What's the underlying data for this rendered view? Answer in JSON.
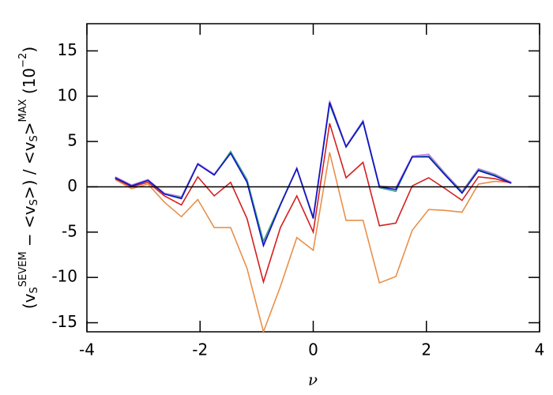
{
  "chart_data": {
    "type": "line",
    "x": [
      -3.5,
      -3.21,
      -2.92,
      -2.63,
      -2.33,
      -2.04,
      -1.75,
      -1.46,
      -1.17,
      -0.88,
      -0.58,
      -0.29,
      0.0,
      0.29,
      0.58,
      0.88,
      1.17,
      1.46,
      1.75,
      2.04,
      2.33,
      2.63,
      2.92,
      3.21,
      3.5
    ],
    "series": [
      {
        "color": "#e8904a",
        "values": [
          0.8,
          -0.2,
          0.3,
          -1.7,
          -3.3,
          -1.4,
          -4.5,
          -4.5,
          -9.0,
          -16.0,
          -11.0,
          -5.6,
          -7.0,
          3.8,
          -3.7,
          -3.7,
          -10.6,
          -9.9,
          -4.8,
          -2.5,
          -2.6,
          -2.8,
          0.3,
          0.6,
          0.5
        ]
      },
      {
        "color": "#d42020",
        "values": [
          0.9,
          0.0,
          0.5,
          -1.0,
          -2.0,
          1.1,
          -1.0,
          0.5,
          -3.5,
          -10.5,
          -4.5,
          -1.0,
          -5.0,
          7.0,
          1.0,
          2.7,
          -4.3,
          -4.0,
          0.1,
          1.0,
          -0.2,
          -1.5,
          1.1,
          0.9,
          0.4
        ]
      },
      {
        "color": "#c080e0",
        "values": [
          1.1,
          0.2,
          0.8,
          -0.7,
          -1.1,
          2.6,
          1.4,
          3.8,
          0.6,
          -6.2,
          -1.9,
          2.1,
          -3.3,
          9.5,
          4.5,
          7.3,
          0.1,
          -0.1,
          3.4,
          3.6,
          1.5,
          -0.5,
          2.0,
          1.4,
          0.5
        ]
      },
      {
        "color": "#3aa080",
        "values": [
          1.0,
          0.1,
          0.7,
          -0.8,
          -1.2,
          2.5,
          1.3,
          3.9,
          0.8,
          -6.0,
          -1.9,
          2.0,
          -3.4,
          9.1,
          4.4,
          7.1,
          -0.1,
          -0.5,
          3.3,
          3.4,
          1.4,
          -0.6,
          1.9,
          1.3,
          0.4
        ]
      },
      {
        "color": "#1010c8",
        "values": [
          1.0,
          0.1,
          0.7,
          -0.8,
          -1.3,
          2.5,
          1.3,
          3.7,
          0.5,
          -6.5,
          -2.0,
          2.0,
          -3.5,
          9.3,
          4.4,
          7.2,
          0.0,
          -0.3,
          3.3,
          3.3,
          1.3,
          -0.7,
          1.8,
          1.2,
          0.4
        ]
      }
    ],
    "hlines": [
      0
    ],
    "xlim": [
      -4,
      4
    ],
    "ylim": [
      -16,
      18
    ],
    "xticks": [
      -4,
      -2,
      0,
      2,
      4
    ],
    "yticks": [
      -15,
      -10,
      -5,
      0,
      5,
      10,
      15
    ],
    "xlabel": "ν",
    "ylabel": [
      "(v",
      "S",
      "SEVEM",
      " − <v",
      "S",
      ">) / <v",
      "S",
      ">",
      "MAX",
      " (10",
      "−2",
      ")"
    ]
  }
}
